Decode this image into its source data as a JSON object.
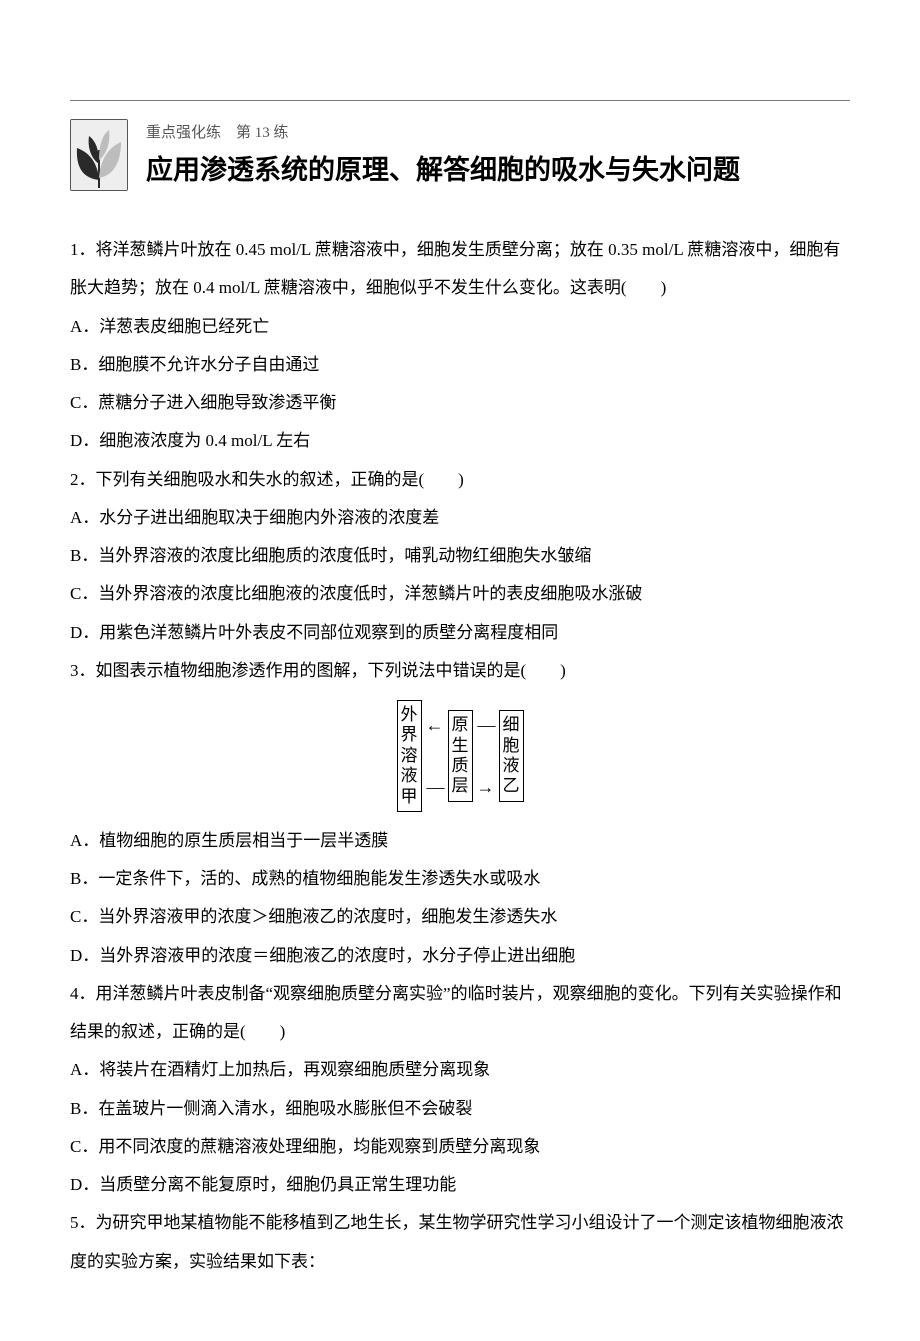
{
  "header": {
    "sub_label": "重点强化练　第 13 练",
    "main_title": "应用渗透系统的原理、解答细胞的吸水与失水问题"
  },
  "questions": [
    {
      "num": "1",
      "stem": "．将洋葱鳞片叶放在 0.45 mol/L 蔗糖溶液中，细胞发生质壁分离；放在 0.35 mol/L 蔗糖溶液中，细胞有胀大趋势；放在 0.4 mol/L 蔗糖溶液中，细胞似乎不发生什么变化。这表明(　　)",
      "options": [
        "A．洋葱表皮细胞已经死亡",
        "B．细胞膜不允许水分子自由通过",
        "C．蔗糖分子进入细胞导致渗透平衡",
        "D．细胞液浓度为 0.4 mol/L 左右"
      ]
    },
    {
      "num": "2",
      "stem": "．下列有关细胞吸水和失水的叙述，正确的是(　　)",
      "options": [
        "A．水分子进出细胞取决于细胞内外溶液的浓度差",
        "B．当外界溶液的浓度比细胞质的浓度低时，哺乳动物红细胞失水皱缩",
        "C．当外界溶液的浓度比细胞液的浓度低时，洋葱鳞片叶的表皮细胞吸水涨破",
        "D．用紫色洋葱鳞片叶外表皮不同部位观察到的质壁分离程度相同"
      ]
    },
    {
      "num": "3",
      "stem": "．如图表示植物细胞渗透作用的图解，下列说法中错误的是(　　)",
      "figure": {
        "box1": "外界溶液甲",
        "box2": "原生质层",
        "box3": "细胞液乙"
      },
      "options": [
        "A．植物细胞的原生质层相当于一层半透膜",
        "B．一定条件下，活的、成熟的植物细胞能发生渗透失水或吸水",
        "C．当外界溶液甲的浓度＞细胞液乙的浓度时，细胞发生渗透失水",
        "D．当外界溶液甲的浓度＝细胞液乙的浓度时，水分子停止进出细胞"
      ]
    },
    {
      "num": "4",
      "stem": "．用洋葱鳞片叶表皮制备“观察细胞质壁分离实验”的临时装片，观察细胞的变化。下列有关实验操作和结果的叙述，正确的是(　　)",
      "options": [
        "A．将装片在酒精灯上加热后，再观察细胞质壁分离现象",
        "B．在盖玻片一侧滴入清水，细胞吸水膨胀但不会破裂",
        "C．用不同浓度的蔗糖溶液处理细胞，均能观察到质壁分离现象",
        "D．当质壁分离不能复原时，细胞仍具正常生理功能"
      ]
    },
    {
      "num": "5",
      "stem": "．为研究甲地某植物能不能移植到乙地生长，某生物学研究性学习小组设计了一个测定该植物细胞液浓度的实验方案，实验结果如下表："
    }
  ],
  "colors": {
    "text": "#000000",
    "sub": "#555555",
    "rule": "#777777",
    "icon_border": "#555555",
    "icon_bg": "#eeeeee",
    "leaf_dark": "#2a2a2a",
    "leaf_light": "#bdbdbd"
  }
}
